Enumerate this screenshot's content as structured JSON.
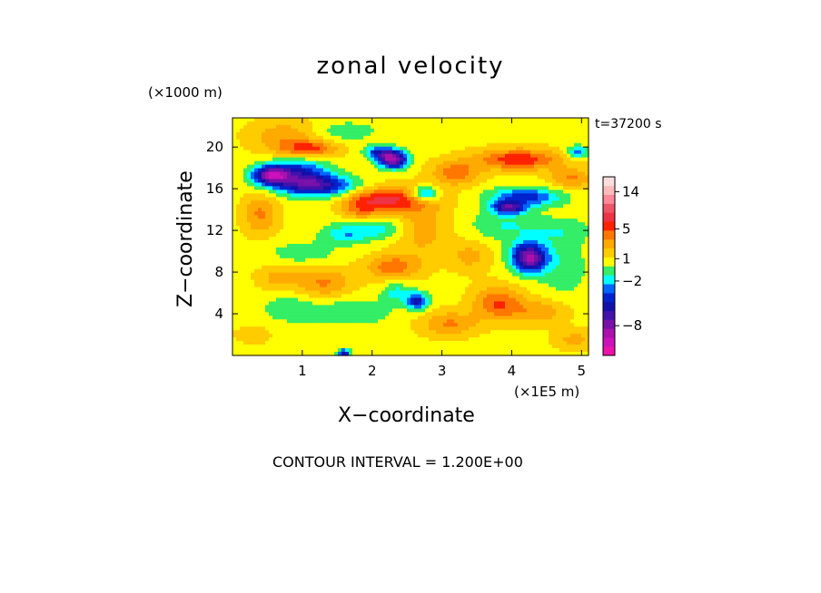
{
  "chart_data": {
    "type": "heatmap",
    "title": "zonal velocity",
    "xlabel": "X−coordinate",
    "ylabel": "Z−coordinate",
    "x_unit": "(×1E5 m)",
    "z_unit": "(×1000 m)",
    "time_label": "t=37200 s",
    "contour_interval_label": "CONTOUR INTERVAL = 1.200E+00",
    "x_ticks": [
      1,
      2,
      3,
      4,
      5
    ],
    "z_ticks": [
      4,
      8,
      12,
      16,
      20
    ],
    "xlim": [
      0,
      5.1
    ],
    "zlim": [
      0,
      22.8
    ],
    "colorbar": {
      "levels": [
        -12.0,
        -10.8,
        -9.6,
        -8.4,
        -7.2,
        -6.0,
        -4.8,
        -3.6,
        -2.4,
        -1.2,
        0,
        1.2,
        2.4,
        3.6,
        4.8,
        6.0,
        8.4,
        10.8,
        13.2,
        15.6,
        18.0
      ],
      "colors": [
        "#ee11aa",
        "#cc11bb",
        "#aa11aa",
        "#7711aa",
        "#4411aa",
        "#1111aa",
        "#0022cc",
        "#0066ff",
        "#00ffff",
        "#33ee66",
        "#ffff00",
        "#ffcc00",
        "#ffaa00",
        "#ff7700",
        "#ff2200",
        "#ee3344",
        "#ee5566",
        "#ff8899",
        "#ffbbbb",
        "#ffdddd"
      ],
      "tick_labels": [
        {
          "text": "14",
          "value": 14
        },
        {
          "text": "5",
          "value": 5
        },
        {
          "text": "1",
          "value": 1
        },
        {
          "text": "−2",
          "value": -2
        },
        {
          "text": "−8",
          "value": -8
        }
      ]
    },
    "features": [
      {
        "x": 0.55,
        "z": 17.3,
        "u": -9.0,
        "sx": 0.25,
        "sz": 0.9
      },
      {
        "x": 0.95,
        "z": 17.6,
        "u": -5.0,
        "sx": 0.4,
        "sz": 1.3
      },
      {
        "x": 1.2,
        "z": 16.3,
        "u": -7.0,
        "sx": 0.55,
        "sz": 1.0
      },
      {
        "x": 0.75,
        "z": 21.0,
        "u": 2.5,
        "sx": 0.5,
        "sz": 1.6
      },
      {
        "x": 0.4,
        "z": 13.5,
        "u": 3.0,
        "sx": 0.25,
        "sz": 2.0
      },
      {
        "x": 1.1,
        "z": 19.8,
        "u": 4.0,
        "sx": 0.4,
        "sz": 0.8
      },
      {
        "x": 2.3,
        "z": 18.8,
        "u": -10.0,
        "sx": 0.2,
        "sz": 0.8
      },
      {
        "x": 2.75,
        "z": 15.5,
        "u": -5.5,
        "sx": 0.2,
        "sz": 0.7
      },
      {
        "x": 2.1,
        "z": 19.5,
        "u": -5.0,
        "sx": 0.2,
        "sz": 0.6
      },
      {
        "x": 2.3,
        "z": 15.0,
        "u": 5.0,
        "sx": 0.55,
        "sz": 1.2
      },
      {
        "x": 1.85,
        "z": 14.0,
        "u": 3.0,
        "sx": 0.3,
        "sz": 1.5
      },
      {
        "x": 2.0,
        "z": 12.2,
        "u": -3.0,
        "sx": 0.55,
        "sz": 1.1
      },
      {
        "x": 1.6,
        "z": 11.5,
        "u": -2.0,
        "sx": 0.3,
        "sz": 0.8
      },
      {
        "x": 1.0,
        "z": 9.8,
        "u": -1.5,
        "sx": 0.55,
        "sz": 1.2
      },
      {
        "x": 2.7,
        "z": 12.2,
        "u": 2.5,
        "sx": 0.4,
        "sz": 2.5
      },
      {
        "x": 3.2,
        "z": 17.5,
        "u": 3.5,
        "sx": 0.35,
        "sz": 1.2
      },
      {
        "x": 4.1,
        "z": 18.8,
        "u": 5.0,
        "sx": 0.6,
        "sz": 1.0
      },
      {
        "x": 4.85,
        "z": 17.0,
        "u": 3.0,
        "sx": 0.3,
        "sz": 1.0
      },
      {
        "x": 4.95,
        "z": 19.5,
        "u": -4.0,
        "sx": 0.15,
        "sz": 0.6
      },
      {
        "x": 4.2,
        "z": 15.2,
        "u": -5.0,
        "sx": 0.5,
        "sz": 0.9
      },
      {
        "x": 3.95,
        "z": 14.2,
        "u": -7.0,
        "sx": 0.22,
        "sz": 0.6
      },
      {
        "x": 4.25,
        "z": 9.4,
        "u": -9.5,
        "sx": 0.25,
        "sz": 1.4
      },
      {
        "x": 3.9,
        "z": 12.5,
        "u": -2.0,
        "sx": 0.5,
        "sz": 1.5
      },
      {
        "x": 4.75,
        "z": 8.5,
        "u": -1.6,
        "sx": 0.35,
        "sz": 3.0
      },
      {
        "x": 1.3,
        "z": 7.0,
        "u": 3.0,
        "sx": 0.4,
        "sz": 1.5
      },
      {
        "x": 0.65,
        "z": 7.5,
        "u": 2.0,
        "sx": 0.3,
        "sz": 1.2
      },
      {
        "x": 2.3,
        "z": 8.5,
        "u": 3.5,
        "sx": 0.4,
        "sz": 1.2
      },
      {
        "x": 2.65,
        "z": 5.2,
        "u": -6.0,
        "sx": 0.15,
        "sz": 0.8
      },
      {
        "x": 2.35,
        "z": 6.0,
        "u": -2.5,
        "sx": 0.2,
        "sz": 1.0
      },
      {
        "x": 1.75,
        "z": 4.2,
        "u": -2.0,
        "sx": 0.5,
        "sz": 1.3
      },
      {
        "x": 0.85,
        "z": 4.5,
        "u": -1.6,
        "sx": 0.45,
        "sz": 1.5
      },
      {
        "x": 3.8,
        "z": 5.0,
        "u": 4.0,
        "sx": 0.35,
        "sz": 1.6
      },
      {
        "x": 4.4,
        "z": 4.2,
        "u": 2.5,
        "sx": 0.4,
        "sz": 1.2
      },
      {
        "x": 3.1,
        "z": 3.0,
        "u": 3.0,
        "sx": 0.4,
        "sz": 1.2
      },
      {
        "x": 1.6,
        "z": 21.5,
        "u": -1.6,
        "sx": 0.5,
        "sz": 1.0
      },
      {
        "x": 4.7,
        "z": 12.0,
        "u": -1.5,
        "sx": 0.45,
        "sz": 1.2
      },
      {
        "x": 3.4,
        "z": 9.5,
        "u": 2.0,
        "sx": 0.3,
        "sz": 1.5
      },
      {
        "x": 4.9,
        "z": 1.5,
        "u": 2.0,
        "sx": 0.3,
        "sz": 1.0
      },
      {
        "x": 0.3,
        "z": 2.0,
        "u": 1.0,
        "sx": 0.3,
        "sz": 1.0
      },
      {
        "x": 1.6,
        "z": 0.2,
        "u": -7.0,
        "sx": 0.08,
        "sz": 0.4
      }
    ]
  }
}
